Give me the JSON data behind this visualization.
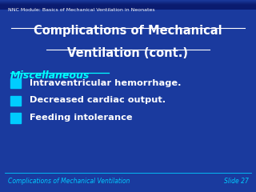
{
  "bg_color_top": "#1a3a9e",
  "bg_color_bottom": "#0a1a6e",
  "header_text": "NNC Module: Basics of Mechanical Ventilation in Neonates",
  "title_line1": "Complications of Mechanical",
  "title_line2": "Ventilation (cont.)",
  "section_header": "Miscellaneous",
  "bullets": [
    "Intraventricular hemorrhage.",
    "Decreased cardiac output.",
    "Feeding intolerance"
  ],
  "footer_left": "Complications of Mechanical Ventilation",
  "footer_right": "Slide 27",
  "title_color": "#ffffff",
  "section_color": "#00ffff",
  "bullet_color": "#ffffff",
  "bullet_square_color": "#00ccff",
  "header_color": "#ffffff",
  "footer_color": "#00ccff"
}
